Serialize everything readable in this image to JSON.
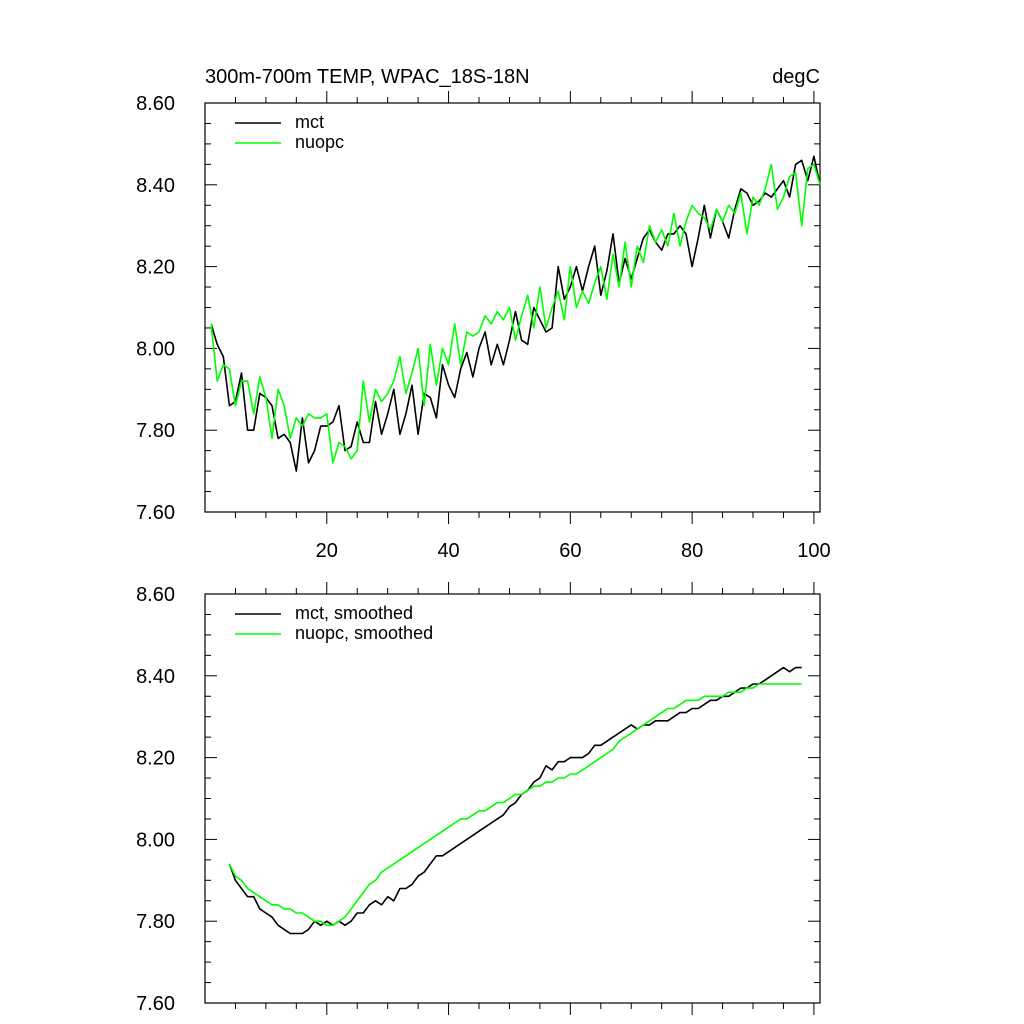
{
  "chart_data": [
    {
      "type": "line",
      "title": "300m-700m TEMP, WPAC_18S-18N",
      "units": "degC",
      "xlabel": "",
      "ylabel": "",
      "xlim": [
        0,
        101
      ],
      "ylim": [
        7.6,
        8.6
      ],
      "xticks": [
        20,
        40,
        60,
        80,
        100
      ],
      "xtick_labels": [
        "20",
        "40",
        "60",
        "80",
        "100"
      ],
      "yticks": [
        7.6,
        7.8,
        8.0,
        8.2,
        8.4,
        8.6
      ],
      "ytick_labels": [
        "7.60",
        "7.80",
        "8.00",
        "8.20",
        "8.40",
        "8.60"
      ],
      "grid": false,
      "legend_position": "top-left",
      "series": [
        {
          "name": "mct",
          "color": "#000000",
          "x": [
            1,
            2,
            3,
            4,
            5,
            6,
            7,
            8,
            9,
            10,
            11,
            12,
            13,
            14,
            15,
            16,
            17,
            18,
            19,
            20,
            21,
            22,
            23,
            24,
            25,
            26,
            27,
            28,
            29,
            30,
            31,
            32,
            33,
            34,
            35,
            36,
            37,
            38,
            39,
            40,
            41,
            42,
            43,
            44,
            45,
            46,
            47,
            48,
            49,
            50,
            51,
            52,
            53,
            54,
            55,
            56,
            57,
            58,
            59,
            60,
            61,
            62,
            63,
            64,
            65,
            66,
            67,
            68,
            69,
            70,
            71,
            72,
            73,
            74,
            75,
            76,
            77,
            78,
            79,
            80,
            81,
            82,
            83,
            84,
            85,
            86,
            87,
            88,
            89,
            90,
            91,
            92,
            93,
            94,
            95,
            96,
            97,
            98,
            99,
            100,
            101
          ],
          "values": [
            8.06,
            8.01,
            7.98,
            7.86,
            7.87,
            7.94,
            7.8,
            7.8,
            7.89,
            7.88,
            7.86,
            7.78,
            7.79,
            7.77,
            7.7,
            7.83,
            7.72,
            7.75,
            7.81,
            7.81,
            7.82,
            7.86,
            7.75,
            7.76,
            7.82,
            7.77,
            7.77,
            7.87,
            7.79,
            7.84,
            7.9,
            7.79,
            7.84,
            7.91,
            7.79,
            7.89,
            7.88,
            7.83,
            7.96,
            7.91,
            7.88,
            7.95,
            7.99,
            7.93,
            8.0,
            8.04,
            7.96,
            8.01,
            7.96,
            8.02,
            8.09,
            8.02,
            8.01,
            8.1,
            8.07,
            8.04,
            8.05,
            8.2,
            8.12,
            8.15,
            8.2,
            8.14,
            8.2,
            8.25,
            8.13,
            8.19,
            8.28,
            8.16,
            8.22,
            8.17,
            8.22,
            8.27,
            8.29,
            8.26,
            8.24,
            8.28,
            8.28,
            8.3,
            8.28,
            8.2,
            8.27,
            8.35,
            8.27,
            8.34,
            8.31,
            8.27,
            8.34,
            8.39,
            8.38,
            8.35,
            8.36,
            8.38,
            8.37,
            8.39,
            8.41,
            8.37,
            8.45,
            8.46,
            8.41,
            8.47,
            8.4
          ]
        },
        {
          "name": "nuopc",
          "color": "#00ff00",
          "x": [
            1,
            2,
            3,
            4,
            5,
            6,
            7,
            8,
            9,
            10,
            11,
            12,
            13,
            14,
            15,
            16,
            17,
            18,
            19,
            20,
            21,
            22,
            23,
            24,
            25,
            26,
            27,
            28,
            29,
            30,
            31,
            32,
            33,
            34,
            35,
            36,
            37,
            38,
            39,
            40,
            41,
            42,
            43,
            44,
            45,
            46,
            47,
            48,
            49,
            50,
            51,
            52,
            53,
            54,
            55,
            56,
            57,
            58,
            59,
            60,
            61,
            62,
            63,
            64,
            65,
            66,
            67,
            68,
            69,
            70,
            71,
            72,
            73,
            74,
            75,
            76,
            77,
            78,
            79,
            80,
            81,
            82,
            83,
            84,
            85,
            86,
            87,
            88,
            89,
            90,
            91,
            92,
            93,
            94,
            95,
            96,
            97,
            98,
            99,
            100,
            101
          ],
          "values": [
            8.06,
            7.92,
            7.96,
            7.95,
            7.86,
            7.92,
            7.92,
            7.84,
            7.93,
            7.88,
            7.78,
            7.9,
            7.86,
            7.78,
            7.83,
            7.81,
            7.84,
            7.83,
            7.83,
            7.84,
            7.72,
            7.77,
            7.76,
            7.73,
            7.75,
            7.92,
            7.82,
            7.9,
            7.87,
            7.89,
            7.92,
            7.98,
            7.89,
            7.94,
            8.0,
            7.86,
            8.01,
            7.91,
            8.0,
            7.96,
            8.06,
            7.96,
            8.04,
            8.03,
            8.04,
            8.08,
            8.06,
            8.09,
            8.07,
            8.1,
            8.02,
            8.08,
            8.13,
            8.05,
            8.15,
            8.05,
            8.1,
            8.14,
            8.07,
            8.2,
            8.1,
            8.14,
            8.11,
            8.16,
            8.2,
            8.12,
            8.23,
            8.15,
            8.26,
            8.15,
            8.25,
            8.21,
            8.3,
            8.26,
            8.29,
            8.25,
            8.33,
            8.25,
            8.31,
            8.35,
            8.33,
            8.32,
            8.29,
            8.34,
            8.31,
            8.35,
            8.33,
            8.38,
            8.28,
            8.37,
            8.35,
            8.39,
            8.45,
            8.34,
            8.37,
            8.42,
            8.43,
            8.3,
            8.44,
            8.45,
            8.4
          ]
        }
      ]
    },
    {
      "type": "line",
      "title": "",
      "xlabel": "",
      "ylabel": "",
      "xlim": [
        0,
        101
      ],
      "ylim": [
        7.6,
        8.6
      ],
      "xticks": [
        20,
        40,
        60,
        80,
        100
      ],
      "xtick_labels": [],
      "yticks": [
        7.6,
        7.8,
        8.0,
        8.2,
        8.4,
        8.6
      ],
      "ytick_labels": [
        "7.60",
        "7.80",
        "8.00",
        "8.20",
        "8.40",
        "8.60"
      ],
      "grid": false,
      "legend_position": "top-left",
      "series": [
        {
          "name": "mct, smoothed",
          "color": "#000000",
          "x": [
            4,
            5,
            6,
            7,
            8,
            9,
            10,
            11,
            12,
            13,
            14,
            15,
            16,
            17,
            18,
            19,
            20,
            21,
            22,
            23,
            24,
            25,
            26,
            27,
            28,
            29,
            30,
            31,
            32,
            33,
            34,
            35,
            36,
            37,
            38,
            39,
            40,
            41,
            42,
            43,
            44,
            45,
            46,
            47,
            48,
            49,
            50,
            51,
            52,
            53,
            54,
            55,
            56,
            57,
            58,
            59,
            60,
            61,
            62,
            63,
            64,
            65,
            66,
            67,
            68,
            69,
            70,
            71,
            72,
            73,
            74,
            75,
            76,
            77,
            78,
            79,
            80,
            81,
            82,
            83,
            84,
            85,
            86,
            87,
            88,
            89,
            90,
            91,
            92,
            93,
            94,
            95,
            96,
            97,
            98
          ],
          "values": [
            7.94,
            7.9,
            7.88,
            7.86,
            7.86,
            7.83,
            7.82,
            7.81,
            7.79,
            7.78,
            7.77,
            7.77,
            7.77,
            7.78,
            7.8,
            7.79,
            7.8,
            7.79,
            7.8,
            7.79,
            7.8,
            7.82,
            7.82,
            7.84,
            7.85,
            7.84,
            7.86,
            7.85,
            7.88,
            7.88,
            7.89,
            7.91,
            7.92,
            7.94,
            7.96,
            7.96,
            7.97,
            7.98,
            7.99,
            8.0,
            8.01,
            8.02,
            8.03,
            8.04,
            8.05,
            8.06,
            8.08,
            8.09,
            8.11,
            8.12,
            8.14,
            8.15,
            8.18,
            8.17,
            8.19,
            8.19,
            8.2,
            8.2,
            8.2,
            8.21,
            8.23,
            8.23,
            8.24,
            8.25,
            8.26,
            8.27,
            8.28,
            8.27,
            8.28,
            8.28,
            8.29,
            8.29,
            8.29,
            8.3,
            8.31,
            8.31,
            8.32,
            8.32,
            8.33,
            8.34,
            8.34,
            8.35,
            8.35,
            8.36,
            8.37,
            8.37,
            8.38,
            8.38,
            8.39,
            8.4,
            8.41,
            8.42,
            8.41,
            8.42,
            8.42
          ]
        },
        {
          "name": "nuopc, smoothed",
          "color": "#00ff00",
          "x": [
            4,
            5,
            6,
            7,
            8,
            9,
            10,
            11,
            12,
            13,
            14,
            15,
            16,
            17,
            18,
            19,
            20,
            21,
            22,
            23,
            24,
            25,
            26,
            27,
            28,
            29,
            30,
            31,
            32,
            33,
            34,
            35,
            36,
            37,
            38,
            39,
            40,
            41,
            42,
            43,
            44,
            45,
            46,
            47,
            48,
            49,
            50,
            51,
            52,
            53,
            54,
            55,
            56,
            57,
            58,
            59,
            60,
            61,
            62,
            63,
            64,
            65,
            66,
            67,
            68,
            69,
            70,
            71,
            72,
            73,
            74,
            75,
            76,
            77,
            78,
            79,
            80,
            81,
            82,
            83,
            84,
            85,
            86,
            87,
            88,
            89,
            90,
            91,
            92,
            93,
            94,
            95,
            96,
            97,
            98
          ],
          "values": [
            7.94,
            7.91,
            7.9,
            7.88,
            7.87,
            7.86,
            7.85,
            7.84,
            7.84,
            7.83,
            7.83,
            7.82,
            7.82,
            7.81,
            7.8,
            7.8,
            7.79,
            7.79,
            7.8,
            7.81,
            7.83,
            7.85,
            7.87,
            7.89,
            7.9,
            7.92,
            7.93,
            7.94,
            7.95,
            7.96,
            7.97,
            7.98,
            7.99,
            8.0,
            8.01,
            8.02,
            8.03,
            8.04,
            8.05,
            8.05,
            8.06,
            8.07,
            8.07,
            8.08,
            8.09,
            8.09,
            8.1,
            8.11,
            8.11,
            8.12,
            8.13,
            8.13,
            8.14,
            8.14,
            8.15,
            8.15,
            8.16,
            8.16,
            8.17,
            8.18,
            8.19,
            8.2,
            8.21,
            8.22,
            8.24,
            8.25,
            8.26,
            8.27,
            8.28,
            8.29,
            8.3,
            8.31,
            8.32,
            8.32,
            8.33,
            8.34,
            8.34,
            8.34,
            8.35,
            8.35,
            8.35,
            8.35,
            8.36,
            8.36,
            8.36,
            8.37,
            8.37,
            8.38,
            8.38,
            8.38,
            8.38,
            8.38,
            8.38,
            8.38,
            8.38
          ]
        }
      ]
    }
  ]
}
